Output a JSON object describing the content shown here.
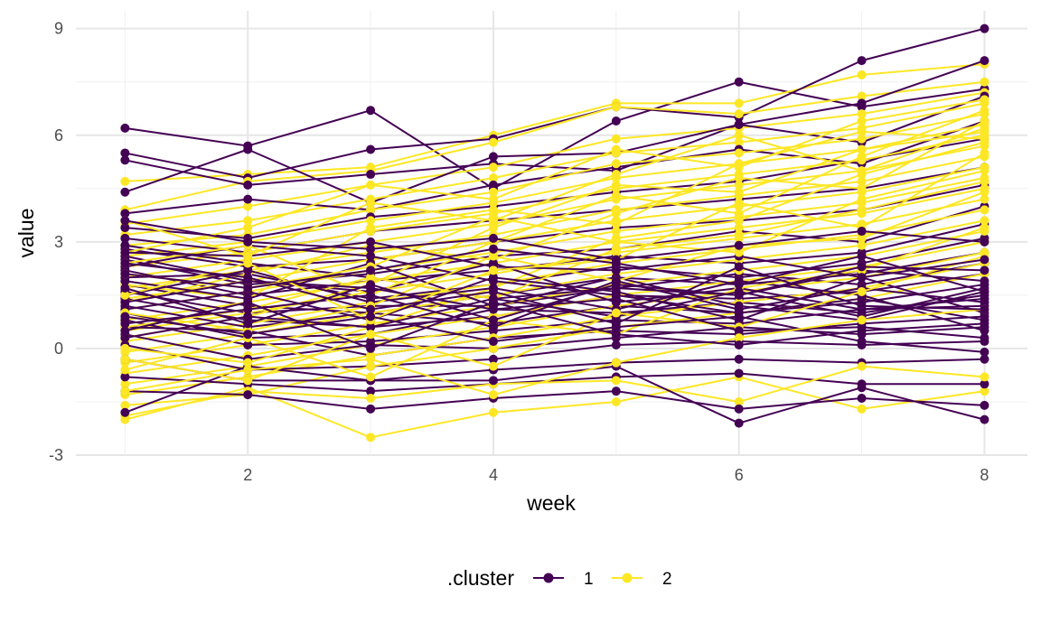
{
  "chart_data": {
    "type": "line",
    "xlabel": "week",
    "ylabel": "value",
    "xlim": [
      0.6,
      8.35
    ],
    "ylim": [
      -3,
      9.5
    ],
    "x_ticks": [
      2,
      4,
      6,
      8
    ],
    "x_tick_labels": [
      "2",
      "4",
      "6",
      "8"
    ],
    "y_ticks": [
      -3,
      0,
      3,
      6,
      9
    ],
    "y_tick_labels": [
      "-3",
      "0",
      "3",
      "6",
      "9"
    ],
    "grid": true,
    "legend": {
      "title": ".cluster",
      "position": "bottom"
    },
    "x": [
      1,
      2,
      3,
      4,
      5,
      6,
      7,
      8
    ],
    "series_groups": [
      {
        "name": "1",
        "color": "#440154",
        "lines": [
          [
            6.2,
            5.7,
            6.7,
            4.5,
            6.4,
            7.5,
            6.8,
            7.3
          ],
          [
            5.5,
            4.8,
            5.6,
            5.9,
            6.8,
            6.5,
            8.1,
            9.0
          ],
          [
            5.3,
            4.6,
            4.9,
            5.2,
            5.0,
            6.3,
            6.9,
            8.1
          ],
          [
            4.4,
            5.6,
            4.1,
            5.4,
            5.5,
            6.3,
            5.8,
            7.1
          ],
          [
            3.8,
            4.2,
            3.9,
            4.6,
            5.1,
            5.6,
            5.2,
            6.4
          ],
          [
            3.4,
            3.1,
            3.7,
            4.0,
            4.4,
            4.7,
            5.3,
            5.9
          ],
          [
            3.1,
            2.7,
            3.3,
            3.6,
            3.9,
            4.2,
            4.5,
            5.1
          ],
          [
            2.8,
            2.3,
            2.5,
            3.0,
            3.4,
            3.6,
            3.9,
            4.6
          ],
          [
            2.5,
            1.8,
            2.1,
            2.6,
            2.8,
            3.3,
            3.0,
            4.0
          ],
          [
            2.2,
            1.5,
            1.9,
            2.2,
            2.6,
            2.4,
            2.7,
            3.5
          ],
          [
            2.0,
            2.1,
            1.4,
            1.8,
            2.3,
            2.0,
            2.4,
            3.1
          ],
          [
            1.8,
            1.2,
            1.0,
            1.5,
            2.0,
            1.8,
            2.1,
            2.7
          ],
          [
            1.6,
            1.0,
            1.2,
            1.2,
            1.7,
            2.1,
            1.8,
            2.4
          ],
          [
            1.4,
            0.8,
            0.6,
            0.9,
            1.5,
            1.4,
            1.6,
            2.1
          ],
          [
            1.2,
            0.6,
            1.0,
            0.7,
            1.2,
            1.0,
            1.3,
            1.8
          ],
          [
            1.0,
            0.3,
            0.4,
            1.1,
            1.0,
            1.3,
            1.0,
            1.5
          ],
          [
            0.8,
            0.1,
            0.2,
            0.5,
            0.8,
            0.7,
            1.1,
            1.2
          ],
          [
            0.6,
            0.5,
            -0.2,
            0.3,
            0.5,
            0.4,
            0.7,
            0.9
          ],
          [
            0.4,
            -0.3,
            0.1,
            0.0,
            0.3,
            0.6,
            0.4,
            0.6
          ],
          [
            0.1,
            -0.6,
            -0.5,
            -0.3,
            0.1,
            0.2,
            0.1,
            0.2
          ],
          [
            -0.3,
            -0.9,
            -0.9,
            -0.6,
            -0.4,
            -0.3,
            -0.4,
            -0.3
          ],
          [
            -0.8,
            -1.0,
            -1.2,
            -1.0,
            -0.8,
            -0.7,
            -1.0,
            -1.0
          ],
          [
            -1.2,
            -1.3,
            -1.7,
            -1.4,
            -1.2,
            -1.7,
            -1.4,
            -1.6
          ],
          [
            -1.8,
            -0.5,
            -0.9,
            -0.9,
            -0.5,
            -2.1,
            -1.1,
            -2.0
          ],
          [
            2.9,
            2.4,
            2.0,
            1.4,
            1.7,
            1.5,
            2.2,
            1.9
          ],
          [
            2.6,
            1.9,
            1.6,
            2.4,
            1.3,
            1.7,
            1.1,
            1.4
          ],
          [
            2.3,
            2.9,
            2.6,
            1.9,
            1.5,
            1.0,
            1.4,
            0.8
          ],
          [
            1.9,
            1.4,
            2.4,
            1.2,
            2.0,
            1.2,
            0.8,
            1.6
          ],
          [
            1.5,
            2.2,
            1.3,
            1.7,
            1.1,
            1.9,
            1.5,
            0.5
          ],
          [
            1.1,
            1.6,
            0.8,
            2.0,
            1.6,
            0.8,
            2.0,
            1.0
          ],
          [
            0.7,
            1.1,
            1.5,
            0.6,
            1.9,
            1.1,
            1.7,
            1.3
          ],
          [
            0.3,
            0.9,
            0.6,
            1.4,
            0.9,
            1.6,
            0.9,
            1.7
          ],
          [
            2.7,
            2.6,
            3.0,
            2.3,
            2.2,
            2.6,
            2.0,
            2.5
          ],
          [
            1.3,
            1.9,
            1.7,
            1.1,
            1.4,
            0.5,
            0.6,
            0.3
          ],
          [
            0.9,
            0.4,
            0.9,
            0.2,
            0.6,
            0.9,
            0.2,
            -0.1
          ],
          [
            2.4,
            2.0,
            1.1,
            1.6,
            0.7,
            2.3,
            1.2,
            1.1
          ],
          [
            3.6,
            3.0,
            2.8,
            3.1,
            2.5,
            2.9,
            3.3,
            3.0
          ],
          [
            1.7,
            0.7,
            1.8,
            0.8,
            1.8,
            1.5,
            2.3,
            2.2
          ],
          [
            0.5,
            1.3,
            0.0,
            1.3,
            0.4,
            0.1,
            0.5,
            0.7
          ],
          [
            2.1,
            1.7,
            2.2,
            2.8,
            2.4,
            1.8,
            2.6,
            1.6
          ]
        ]
      },
      {
        "name": "2",
        "color": "#fde725",
        "lines": [
          [
            4.7,
            4.9,
            5.1,
            6.0,
            6.9,
            6.9,
            7.7,
            8.0
          ],
          [
            3.9,
            4.7,
            5.0,
            5.8,
            6.8,
            6.6,
            7.1,
            7.5
          ],
          [
            3.5,
            4.0,
            4.6,
            5.1,
            5.9,
            6.2,
            6.6,
            7.2
          ],
          [
            3.2,
            3.6,
            4.2,
            4.8,
            5.5,
            5.8,
            6.2,
            6.9
          ],
          [
            2.9,
            3.2,
            3.9,
            4.4,
            5.2,
            5.5,
            5.9,
            6.6
          ],
          [
            2.6,
            3.0,
            3.6,
            4.1,
            4.8,
            5.2,
            5.6,
            6.3
          ],
          [
            2.3,
            2.7,
            3.3,
            3.8,
            4.5,
            4.9,
            5.3,
            6.0
          ],
          [
            2.0,
            2.5,
            3.0,
            3.5,
            4.2,
            4.6,
            5.0,
            5.7
          ],
          [
            1.7,
            2.2,
            2.7,
            3.2,
            3.9,
            4.3,
            4.7,
            5.4
          ],
          [
            1.4,
            1.9,
            2.5,
            3.0,
            3.6,
            4.0,
            4.4,
            5.1
          ],
          [
            1.1,
            1.6,
            2.2,
            2.7,
            3.3,
            3.7,
            4.1,
            4.8
          ],
          [
            0.8,
            1.3,
            1.9,
            2.4,
            3.0,
            3.4,
            3.8,
            4.5
          ],
          [
            0.5,
            1.0,
            1.6,
            2.1,
            2.7,
            3.1,
            3.5,
            4.2
          ],
          [
            0.2,
            0.7,
            1.3,
            1.8,
            2.4,
            2.8,
            3.2,
            3.9
          ],
          [
            -0.1,
            0.4,
            1.0,
            1.5,
            2.1,
            2.5,
            2.9,
            3.6
          ],
          [
            -0.4,
            0.1,
            0.7,
            1.2,
            1.8,
            2.2,
            2.6,
            3.3
          ],
          [
            -0.7,
            -0.2,
            0.4,
            0.9,
            1.5,
            1.9,
            2.3,
            3.0
          ],
          [
            -1.0,
            -0.5,
            0.1,
            0.6,
            1.2,
            1.6,
            2.0,
            2.7
          ],
          [
            -1.3,
            -0.8,
            -0.2,
            0.3,
            0.9,
            1.3,
            1.7,
            2.4
          ],
          [
            -1.6,
            -1.3,
            -0.5,
            0.0,
            0.6,
            1.0,
            1.4,
            2.1
          ],
          [
            -2.0,
            -1.1,
            -2.5,
            -1.8,
            -1.5,
            -0.8,
            -1.7,
            -1.2
          ],
          [
            -1.9,
            -1.2,
            -1.4,
            -1.0,
            -0.9,
            -1.5,
            -0.5,
            -0.8
          ],
          [
            0.3,
            0.9,
            1.8,
            3.4,
            4.6,
            4.4,
            5.6,
            6.1
          ],
          [
            0.0,
            -0.4,
            0.6,
            1.7,
            3.1,
            3.6,
            4.9,
            5.8
          ],
          [
            1.3,
            2.1,
            2.9,
            2.5,
            3.8,
            4.8,
            4.5,
            6.4
          ],
          [
            1.8,
            1.4,
            3.4,
            3.9,
            3.5,
            5.2,
            6.1,
            5.9
          ],
          [
            2.4,
            2.9,
            1.5,
            3.0,
            4.3,
            3.8,
            5.4,
            6.7
          ],
          [
            0.6,
            1.1,
            2.0,
            1.4,
            2.8,
            3.2,
            3.9,
            4.7
          ],
          [
            -0.6,
            0.3,
            -0.8,
            0.8,
            0.4,
            1.7,
            2.2,
            3.4
          ],
          [
            1.0,
            0.5,
            1.2,
            2.6,
            1.9,
            2.9,
            3.1,
            4.4
          ],
          [
            2.7,
            3.4,
            4.6,
            4.2,
            5.6,
            5.1,
            6.4,
            7.0
          ],
          [
            -0.3,
            -0.9,
            0.4,
            -0.5,
            1.0,
            0.6,
            1.6,
            2.6
          ],
          [
            3.6,
            2.6,
            4.1,
            3.6,
            4.9,
            6.0,
            5.0,
            6.2
          ],
          [
            1.5,
            2.4,
            0.8,
            2.2,
            2.5,
            4.1,
            3.4,
            5.5
          ],
          [
            -1.2,
            -0.6,
            -0.3,
            -1.3,
            -0.4,
            0.3,
            0.8,
            1.1
          ],
          [
            2.1,
            1.7,
            2.3,
            3.7,
            3.0,
            2.7,
            4.2,
            5.0
          ]
        ]
      }
    ]
  }
}
